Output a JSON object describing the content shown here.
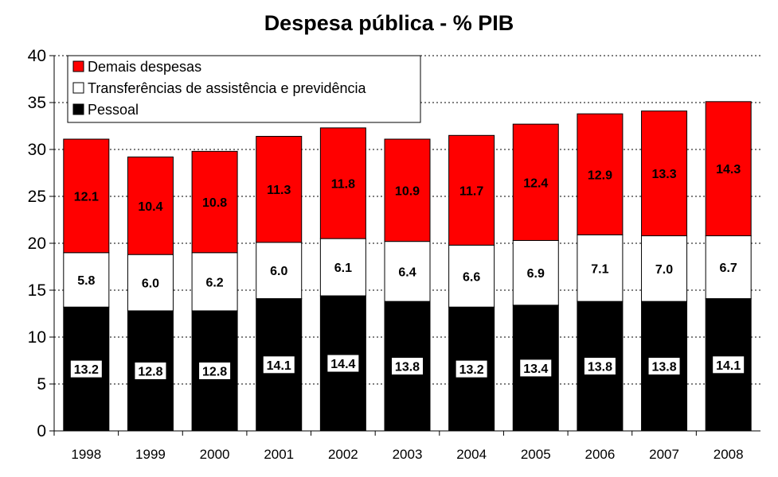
{
  "chart_data": {
    "type": "bar",
    "stacked": true,
    "title": "Despesa pública - % PIB",
    "xlabel": "",
    "ylabel": "",
    "ylim": [
      0,
      40
    ],
    "yticks": [
      0,
      5,
      10,
      15,
      20,
      25,
      30,
      35,
      40
    ],
    "grid": "horizontal-dotted",
    "legend_position": "top-left",
    "categories": [
      "1998",
      "1999",
      "2000",
      "2001",
      "2002",
      "2003",
      "2004",
      "2005",
      "2006",
      "2007",
      "2008"
    ],
    "series": [
      {
        "name": "Pessoal",
        "color": "#000000",
        "values": [
          13.2,
          12.8,
          12.8,
          14.1,
          14.4,
          13.8,
          13.2,
          13.4,
          13.8,
          13.8,
          14.1
        ],
        "labels": [
          "13.2",
          "12.8",
          "12.8",
          "14.1",
          "14.4",
          "13.8",
          "13.2",
          "13.4",
          "13.8",
          "13.8",
          "14.1"
        ]
      },
      {
        "name": "Transferências de assistência e previdência",
        "color": "#ffffff",
        "values": [
          5.8,
          6.0,
          6.2,
          6.0,
          6.1,
          6.4,
          6.6,
          6.9,
          7.1,
          7.0,
          6.7
        ],
        "labels": [
          "5.8",
          "6.0",
          "6.2",
          "6.0",
          "6.1",
          "6.4",
          "6.6",
          "6.9",
          "7.1",
          "7.0",
          "6.7"
        ]
      },
      {
        "name": "Demais despesas",
        "color": "#ff0000",
        "values": [
          12.1,
          10.4,
          10.8,
          11.3,
          11.8,
          10.9,
          11.7,
          12.4,
          12.9,
          13.3,
          14.3
        ],
        "labels": [
          "12.1",
          "10.4",
          "10.8",
          "11.3",
          "11.8",
          "10.9",
          "11.7",
          "12.4",
          "12.9",
          "13.3",
          "14.3"
        ]
      }
    ],
    "legend_order": [
      "Demais despesas",
      "Transferências de assistência e previdência",
      "Pessoal"
    ]
  }
}
